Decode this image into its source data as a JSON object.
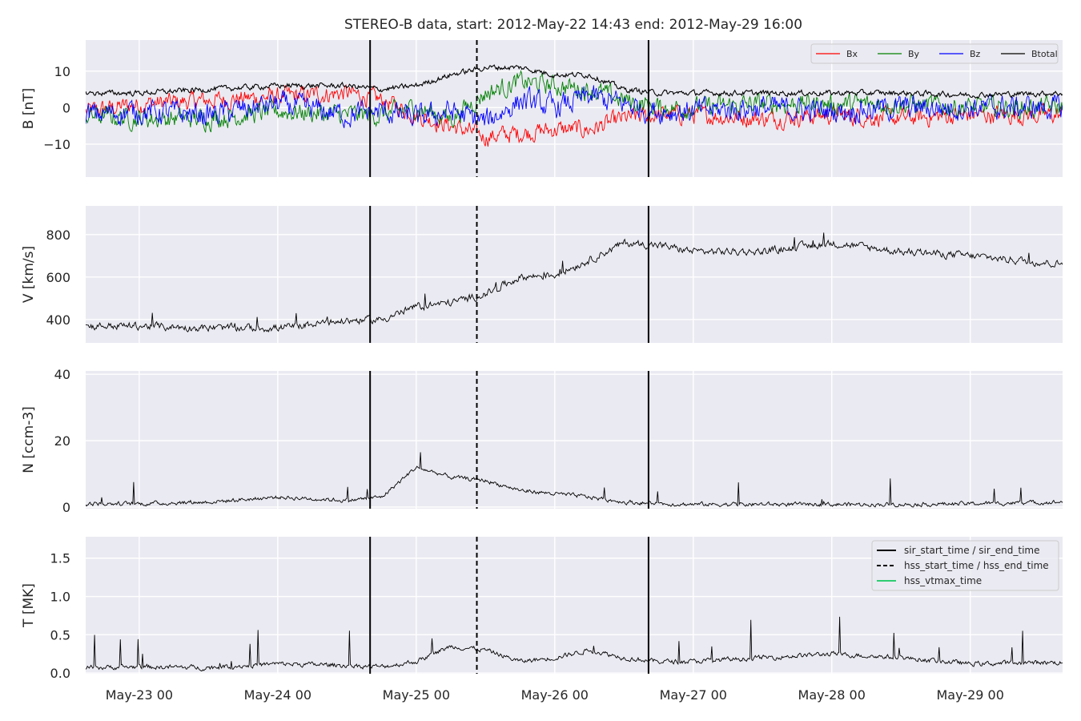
{
  "figure": {
    "title": "STEREO-B data, start: 2012-May-22 14:43  end: 2012-May-29 16:00",
    "x_ticks": [
      "May-23 00",
      "May-24 00",
      "May-25 00",
      "May-26 00",
      "May-27 00",
      "May-28 00",
      "May-29 00"
    ],
    "colors": {
      "panel_bg": "#eaeaf2",
      "grid": "#ffffff",
      "bx": "#ff0000",
      "by": "#008000",
      "bz": "#0000ff",
      "btotal": "#000000",
      "hss_vtmax": "#2ecc71"
    }
  },
  "chart_data": [
    {
      "type": "line",
      "ylabel": "B [nT]",
      "ylim": [
        -19,
        18.5
      ],
      "yticks": [
        {
          "v": 10,
          "label": "10"
        },
        {
          "v": 0,
          "label": "0"
        },
        {
          "v": -10,
          "label": "−10"
        }
      ],
      "x_domain": [
        "2012-05-22 14:43",
        "2012-05-29 16:00"
      ],
      "legend": "upper right, one row",
      "series": [
        {
          "name": "Bx",
          "color": "#ff0000",
          "x": [
            "05-22 15:00",
            "05-23 00:00",
            "05-23 12:00",
            "05-24 00:00",
            "05-24 12:00",
            "05-24 18:00",
            "05-25 00:00",
            "05-25 06:00",
            "05-25 12:00",
            "05-25 18:00",
            "05-26 00:00",
            "05-26 06:00",
            "05-26 12:00",
            "05-26 18:00",
            "05-27 00:00",
            "05-27 12:00",
            "05-28 00:00",
            "05-28 12:00",
            "05-29 00:00",
            "05-29 16:00"
          ],
          "values": [
            -1,
            1,
            2,
            3,
            4,
            2,
            -2,
            -5,
            -8,
            -7,
            -6,
            -6,
            -3,
            -2,
            -2,
            -3,
            -2,
            -3,
            -2,
            -2
          ]
        },
        {
          "name": "By",
          "color": "#008000",
          "x": [
            "05-22 15:00",
            "05-23 00:00",
            "05-23 12:00",
            "05-24 00:00",
            "05-24 12:00",
            "05-24 18:00",
            "05-25 00:00",
            "05-25 06:00",
            "05-25 12:00",
            "05-25 18:00",
            "05-26 00:00",
            "05-26 06:00",
            "05-26 12:00",
            "05-26 18:00",
            "05-27 00:00",
            "05-27 12:00",
            "05-28 00:00",
            "05-28 12:00",
            "05-29 00:00",
            "05-29 16:00"
          ],
          "values": [
            -2,
            -3,
            -3,
            -1,
            -2,
            -2,
            0,
            -3,
            4,
            7,
            6,
            5,
            2,
            0,
            0,
            1,
            1,
            1,
            0,
            0
          ]
        },
        {
          "name": "Bz",
          "color": "#0000ff",
          "x": [
            "05-22 15:00",
            "05-23 00:00",
            "05-23 12:00",
            "05-24 00:00",
            "05-24 12:00",
            "05-24 18:00",
            "05-25 00:00",
            "05-25 06:00",
            "05-25 12:00",
            "05-25 18:00",
            "05-26 00:00",
            "05-26 06:00",
            "05-26 12:00",
            "05-26 18:00",
            "05-27 00:00",
            "05-27 12:00",
            "05-28 00:00",
            "05-28 12:00",
            "05-29 00:00",
            "05-29 16:00"
          ],
          "values": [
            -2,
            -1,
            -2,
            1,
            -2,
            -1,
            -3,
            -1,
            -4,
            2,
            0,
            3,
            1,
            -1,
            -1,
            0,
            -1,
            0,
            0,
            0
          ]
        },
        {
          "name": "Btotal",
          "color": "#000000",
          "x": [
            "05-22 15:00",
            "05-23 00:00",
            "05-23 12:00",
            "05-24 00:00",
            "05-24 12:00",
            "05-24 18:00",
            "05-25 00:00",
            "05-25 06:00",
            "05-25 12:00",
            "05-25 18:00",
            "05-26 00:00",
            "05-26 06:00",
            "05-26 12:00",
            "05-26 18:00",
            "05-27 00:00",
            "05-27 12:00",
            "05-28 00:00",
            "05-28 12:00",
            "05-29 00:00",
            "05-29 16:00"
          ],
          "values": [
            4,
            4,
            5,
            6,
            6,
            5,
            6,
            9,
            11,
            11,
            9,
            9,
            5,
            4,
            4,
            4,
            4,
            4,
            3.5,
            4
          ]
        }
      ]
    },
    {
      "type": "line",
      "ylabel": "V [km/s]",
      "ylim": [
        290,
        935
      ],
      "yticks": [
        {
          "v": 800,
          "label": "800"
        },
        {
          "v": 600,
          "label": "600"
        },
        {
          "v": 400,
          "label": "400"
        }
      ],
      "x_domain": [
        "2012-05-22 14:43",
        "2012-05-29 16:00"
      ],
      "series": [
        {
          "name": "V",
          "color": "#000000",
          "x": [
            "05-22 15:00",
            "05-23 00:00",
            "05-23 12:00",
            "05-24 00:00",
            "05-24 12:00",
            "05-24 18:00",
            "05-25 00:00",
            "05-25 06:00",
            "05-25 12:00",
            "05-25 18:00",
            "05-26 00:00",
            "05-26 06:00",
            "05-26 12:00",
            "05-26 18:00",
            "05-27 00:00",
            "05-27 12:00",
            "05-28 00:00",
            "05-28 12:00",
            "05-29 00:00",
            "05-29 16:00"
          ],
          "values": [
            370,
            370,
            360,
            360,
            395,
            400,
            460,
            480,
            520,
            600,
            610,
            680,
            760,
            750,
            720,
            720,
            760,
            720,
            700,
            660
          ]
        }
      ]
    },
    {
      "type": "line",
      "ylabel": "N [ccm-3]",
      "ylim": [
        -0.5,
        41
      ],
      "yticks": [
        {
          "v": 40,
          "label": "40"
        },
        {
          "v": 20,
          "label": "20"
        },
        {
          "v": 0,
          "label": "0"
        }
      ],
      "x_domain": [
        "2012-05-22 14:43",
        "2012-05-29 16:00"
      ],
      "series": [
        {
          "name": "N",
          "color": "#000000",
          "x": [
            "05-22 15:00",
            "05-23 00:00",
            "05-23 12:00",
            "05-24 00:00",
            "05-24 12:00",
            "05-24 18:00",
            "05-25 00:00",
            "05-25 06:00",
            "05-25 12:00",
            "05-25 18:00",
            "05-26 00:00",
            "05-26 06:00",
            "05-26 12:00",
            "05-26 18:00",
            "05-27 00:00",
            "05-27 12:00",
            "05-28 00:00",
            "05-28 12:00",
            "05-29 00:00",
            "05-29 16:00"
          ],
          "values": [
            1,
            1,
            1.5,
            3,
            2,
            3,
            12,
            9,
            8,
            5,
            4,
            3,
            1.5,
            1,
            0.8,
            0.8,
            0.8,
            0.8,
            1,
            1.5
          ]
        }
      ]
    },
    {
      "type": "line",
      "ylabel": "T [MK]",
      "ylim": [
        -0.01,
        1.78
      ],
      "yticks": [
        {
          "v": 1.5,
          "label": "1.5"
        },
        {
          "v": 1.0,
          "label": "1.0"
        },
        {
          "v": 0.5,
          "label": "0.5"
        },
        {
          "v": 0.0,
          "label": "0.0"
        }
      ],
      "x_domain": [
        "2012-05-22 14:43",
        "2012-05-29 16:00"
      ],
      "legend": "upper right",
      "series": [
        {
          "name": "T",
          "color": "#000000",
          "x": [
            "05-22 15:00",
            "05-23 00:00",
            "05-23 12:00",
            "05-24 00:00",
            "05-24 12:00",
            "05-24 18:00",
            "05-25 00:00",
            "05-25 06:00",
            "05-25 12:00",
            "05-25 18:00",
            "05-26 00:00",
            "05-26 06:00",
            "05-26 12:00",
            "05-26 18:00",
            "05-27 00:00",
            "05-27 12:00",
            "05-28 00:00",
            "05-28 12:00",
            "05-29 00:00",
            "05-29 16:00"
          ],
          "values": [
            0.07,
            0.08,
            0.07,
            0.12,
            0.1,
            0.08,
            0.15,
            0.35,
            0.3,
            0.15,
            0.2,
            0.3,
            0.2,
            0.15,
            0.15,
            0.2,
            0.25,
            0.2,
            0.12,
            0.14
          ]
        },
        {
          "name": "sir_start_time / sir_end_time",
          "color": "#000000",
          "style": "solid vertical",
          "x": [
            "05-24 16:00",
            "05-26 16:15"
          ]
        },
        {
          "name": "hss_start_time / hss_end_time",
          "color": "#000000",
          "style": "dashed vertical",
          "x": [
            "05-25 10:30"
          ]
        },
        {
          "name": "hss_vtmax_time",
          "color": "#2ecc71",
          "style": "solid vertical",
          "x": []
        }
      ]
    }
  ]
}
